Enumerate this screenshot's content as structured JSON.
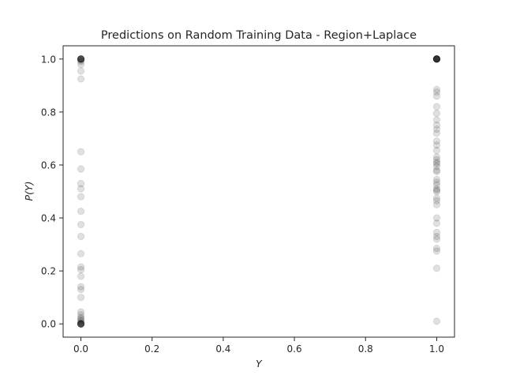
{
  "chart_data": {
    "type": "scatter",
    "title": "Predictions on Random Training Data - Region+Laplace",
    "xlabel": "Y",
    "ylabel": "P(Y)",
    "xlim": [
      -0.05,
      1.05
    ],
    "ylim": [
      -0.05,
      1.05
    ],
    "xticks": [
      0.0,
      0.2,
      0.4,
      0.6,
      0.8,
      1.0
    ],
    "xtick_labels": [
      "0.0",
      "0.2",
      "0.4",
      "0.6",
      "0.8",
      "1.0"
    ],
    "yticks": [
      0.0,
      0.2,
      0.4,
      0.6,
      0.8,
      1.0
    ],
    "ytick_labels": [
      "0.0",
      "0.2",
      "0.4",
      "0.6",
      "0.8",
      "1.0"
    ],
    "grid": false,
    "marker_color": "#000000",
    "marker_alpha": 0.12,
    "points": [
      {
        "x": 0,
        "y": 1.0
      },
      {
        "x": 0,
        "y": 1.0
      },
      {
        "x": 0,
        "y": 1.0
      },
      {
        "x": 0,
        "y": 1.0
      },
      {
        "x": 0,
        "y": 1.0
      },
      {
        "x": 0,
        "y": 1.0
      },
      {
        "x": 0,
        "y": 1.0
      },
      {
        "x": 0,
        "y": 1.0
      },
      {
        "x": 0,
        "y": 0.995
      },
      {
        "x": 0,
        "y": 0.99
      },
      {
        "x": 0,
        "y": 0.98
      },
      {
        "x": 0,
        "y": 0.955
      },
      {
        "x": 0,
        "y": 0.925
      },
      {
        "x": 0,
        "y": 0.65
      },
      {
        "x": 0,
        "y": 0.585
      },
      {
        "x": 0,
        "y": 0.53
      },
      {
        "x": 0,
        "y": 0.51
      },
      {
        "x": 0,
        "y": 0.48
      },
      {
        "x": 0,
        "y": 0.425
      },
      {
        "x": 0,
        "y": 0.375
      },
      {
        "x": 0,
        "y": 0.33
      },
      {
        "x": 0,
        "y": 0.265
      },
      {
        "x": 0,
        "y": 0.215
      },
      {
        "x": 0,
        "y": 0.205
      },
      {
        "x": 0,
        "y": 0.18
      },
      {
        "x": 0,
        "y": 0.14
      },
      {
        "x": 0,
        "y": 0.13
      },
      {
        "x": 0,
        "y": 0.1
      },
      {
        "x": 0,
        "y": 0.045
      },
      {
        "x": 0,
        "y": 0.035
      },
      {
        "x": 0,
        "y": 0.025
      },
      {
        "x": 0,
        "y": 0.02
      },
      {
        "x": 0,
        "y": 0.015
      },
      {
        "x": 0,
        "y": 0.01
      },
      {
        "x": 0,
        "y": 0.005
      },
      {
        "x": 0,
        "y": 0.0
      },
      {
        "x": 0,
        "y": 0.0
      },
      {
        "x": 0,
        "y": 0.0
      },
      {
        "x": 0,
        "y": 0.0
      },
      {
        "x": 0,
        "y": 0.0
      },
      {
        "x": 0,
        "y": 0.0
      },
      {
        "x": 0,
        "y": 0.0
      },
      {
        "x": 0,
        "y": 0.0
      },
      {
        "x": 1,
        "y": 1.0
      },
      {
        "x": 1,
        "y": 1.0
      },
      {
        "x": 1,
        "y": 1.0
      },
      {
        "x": 1,
        "y": 1.0
      },
      {
        "x": 1,
        "y": 1.0
      },
      {
        "x": 1,
        "y": 1.0
      },
      {
        "x": 1,
        "y": 1.0
      },
      {
        "x": 1,
        "y": 1.0
      },
      {
        "x": 1,
        "y": 1.0
      },
      {
        "x": 1,
        "y": 1.0
      },
      {
        "x": 1,
        "y": 1.0
      },
      {
        "x": 1,
        "y": 1.0
      },
      {
        "x": 1,
        "y": 0.885
      },
      {
        "x": 1,
        "y": 0.875
      },
      {
        "x": 1,
        "y": 0.86
      },
      {
        "x": 1,
        "y": 0.82
      },
      {
        "x": 1,
        "y": 0.795
      },
      {
        "x": 1,
        "y": 0.77
      },
      {
        "x": 1,
        "y": 0.75
      },
      {
        "x": 1,
        "y": 0.735
      },
      {
        "x": 1,
        "y": 0.72
      },
      {
        "x": 1,
        "y": 0.69
      },
      {
        "x": 1,
        "y": 0.675
      },
      {
        "x": 1,
        "y": 0.655
      },
      {
        "x": 1,
        "y": 0.63
      },
      {
        "x": 1,
        "y": 0.62
      },
      {
        "x": 1,
        "y": 0.61
      },
      {
        "x": 1,
        "y": 0.605
      },
      {
        "x": 1,
        "y": 0.595
      },
      {
        "x": 1,
        "y": 0.58
      },
      {
        "x": 1,
        "y": 0.575
      },
      {
        "x": 1,
        "y": 0.545
      },
      {
        "x": 1,
        "y": 0.535
      },
      {
        "x": 1,
        "y": 0.525
      },
      {
        "x": 1,
        "y": 0.51
      },
      {
        "x": 1,
        "y": 0.505
      },
      {
        "x": 1,
        "y": 0.5
      },
      {
        "x": 1,
        "y": 0.475
      },
      {
        "x": 1,
        "y": 0.465
      },
      {
        "x": 1,
        "y": 0.45
      },
      {
        "x": 1,
        "y": 0.4
      },
      {
        "x": 1,
        "y": 0.38
      },
      {
        "x": 1,
        "y": 0.345
      },
      {
        "x": 1,
        "y": 0.33
      },
      {
        "x": 1,
        "y": 0.32
      },
      {
        "x": 1,
        "y": 0.285
      },
      {
        "x": 1,
        "y": 0.275
      },
      {
        "x": 1,
        "y": 0.21
      },
      {
        "x": 1,
        "y": 0.01
      }
    ]
  }
}
